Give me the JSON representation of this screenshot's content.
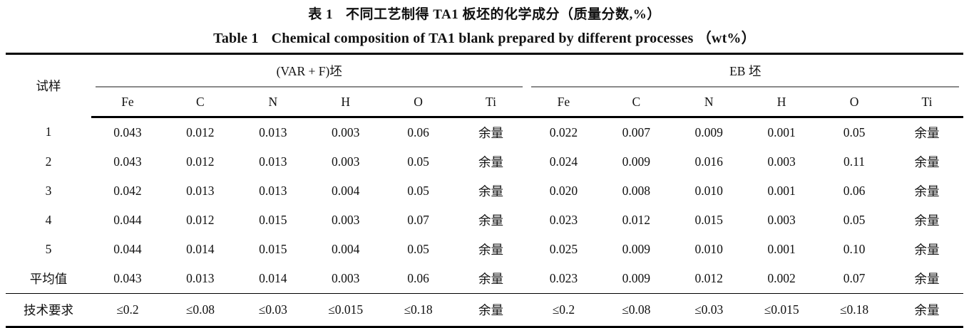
{
  "title": {
    "zh_label": "表 1",
    "zh_text": "不同工艺制得 TA1 板坯的化学成分（质量分数,%）",
    "en_label": "Table 1",
    "en_text": "Chemical composition of TA1 blank prepared by different processes （wt%）"
  },
  "table": {
    "sample_header": "试样",
    "groups": [
      {
        "label": "(VAR + F)坯",
        "columns": [
          "Fe",
          "C",
          "N",
          "H",
          "O",
          "Ti"
        ]
      },
      {
        "label": "EB 坯",
        "columns": [
          "Fe",
          "C",
          "N",
          "H",
          "O",
          "Ti"
        ]
      }
    ],
    "rows": [
      {
        "label": "1",
        "var_f": [
          "0.043",
          "0.012",
          "0.013",
          "0.003",
          "0.06",
          "余量"
        ],
        "eb": [
          "0.022",
          "0.007",
          "0.009",
          "0.001",
          "0.05",
          "余量"
        ]
      },
      {
        "label": "2",
        "var_f": [
          "0.043",
          "0.012",
          "0.013",
          "0.003",
          "0.05",
          "余量"
        ],
        "eb": [
          "0.024",
          "0.009",
          "0.016",
          "0.003",
          "0.11",
          "余量"
        ]
      },
      {
        "label": "3",
        "var_f": [
          "0.042",
          "0.013",
          "0.013",
          "0.004",
          "0.05",
          "余量"
        ],
        "eb": [
          "0.020",
          "0.008",
          "0.010",
          "0.001",
          "0.06",
          "余量"
        ]
      },
      {
        "label": "4",
        "var_f": [
          "0.044",
          "0.012",
          "0.015",
          "0.003",
          "0.07",
          "余量"
        ],
        "eb": [
          "0.023",
          "0.012",
          "0.015",
          "0.003",
          "0.05",
          "余量"
        ]
      },
      {
        "label": "5",
        "var_f": [
          "0.044",
          "0.014",
          "0.015",
          "0.004",
          "0.05",
          "余量"
        ],
        "eb": [
          "0.025",
          "0.009",
          "0.010",
          "0.001",
          "0.10",
          "余量"
        ]
      },
      {
        "label": "平均值",
        "var_f": [
          "0.043",
          "0.013",
          "0.014",
          "0.003",
          "0.06",
          "余量"
        ],
        "eb": [
          "0.023",
          "0.009",
          "0.012",
          "0.002",
          "0.07",
          "余量"
        ]
      }
    ],
    "requirement_row": {
      "label": "技术要求",
      "var_f": [
        "≤0.2",
        "≤0.08",
        "≤0.03",
        "≤0.015",
        "≤0.18",
        "余量"
      ],
      "eb": [
        "≤0.2",
        "≤0.08",
        "≤0.03",
        "≤0.015",
        "≤0.18",
        "余量"
      ]
    }
  },
  "colors": {
    "background": "#ffffff",
    "text": "#111111",
    "rule": "#000000",
    "spanner_rule": "#8a8a8a"
  }
}
